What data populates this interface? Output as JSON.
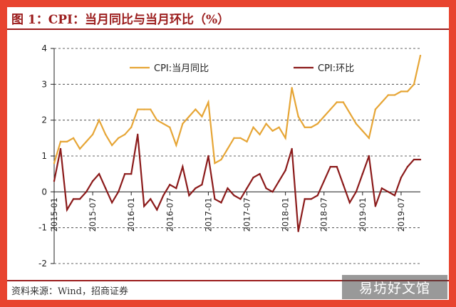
{
  "header": {
    "title": "图 1：CPI：当月同比与当月环比（%）"
  },
  "footer": {
    "source": "资料来源：Wind，招商证券"
  },
  "watermark": {
    "text": "易坊好文馆"
  },
  "chart_data": {
    "type": "line",
    "title": "CPI：当月同比与当月环比（%）",
    "xlabel": "",
    "ylabel": "",
    "ylim": [
      -2,
      4
    ],
    "yticks": [
      4,
      3,
      2,
      1,
      0,
      -1,
      -2
    ],
    "grid": "horizontal-dashed",
    "legend_position": "top",
    "x_tick_labels": [
      "2015-01",
      "2015-07",
      "2016-01",
      "2016-07",
      "2017-01",
      "2017-07",
      "2018-01",
      "2018-07",
      "2019-01",
      "2019-07"
    ],
    "x": [
      "2015-01",
      "2015-02",
      "2015-03",
      "2015-04",
      "2015-05",
      "2015-06",
      "2015-07",
      "2015-08",
      "2015-09",
      "2015-10",
      "2015-11",
      "2015-12",
      "2016-01",
      "2016-02",
      "2016-03",
      "2016-04",
      "2016-05",
      "2016-06",
      "2016-07",
      "2016-08",
      "2016-09",
      "2016-10",
      "2016-11",
      "2016-12",
      "2017-01",
      "2017-02",
      "2017-03",
      "2017-04",
      "2017-05",
      "2017-06",
      "2017-07",
      "2017-08",
      "2017-09",
      "2017-10",
      "2017-11",
      "2017-12",
      "2018-01",
      "2018-02",
      "2018-03",
      "2018-04",
      "2018-05",
      "2018-06",
      "2018-07",
      "2018-08",
      "2018-09",
      "2018-10",
      "2018-11",
      "2018-12",
      "2019-01",
      "2019-02",
      "2019-03",
      "2019-04",
      "2019-05",
      "2019-06",
      "2019-07",
      "2019-08",
      "2019-09",
      "2019-10"
    ],
    "series": [
      {
        "name": "CPI:当月同比",
        "color": "#e6a535",
        "values": [
          0.8,
          1.4,
          1.4,
          1.5,
          1.2,
          1.4,
          1.6,
          2.0,
          1.6,
          1.3,
          1.5,
          1.6,
          1.8,
          2.3,
          2.3,
          2.3,
          2.0,
          1.9,
          1.8,
          1.3,
          1.9,
          2.1,
          2.3,
          2.1,
          2.5,
          0.8,
          0.9,
          1.2,
          1.5,
          1.5,
          1.4,
          1.8,
          1.6,
          1.9,
          1.7,
          1.8,
          1.5,
          2.9,
          2.1,
          1.8,
          1.8,
          1.9,
          2.1,
          2.3,
          2.5,
          2.5,
          2.2,
          1.9,
          1.7,
          1.5,
          2.3,
          2.5,
          2.7,
          2.7,
          2.8,
          2.8,
          3.0,
          3.8
        ]
      },
      {
        "name": "CPI:环比",
        "color": "#8b1a1a",
        "values": [
          0.3,
          1.2,
          -0.5,
          -0.2,
          -0.2,
          0.0,
          0.3,
          0.5,
          0.1,
          -0.3,
          0.0,
          0.5,
          0.5,
          1.6,
          -0.4,
          -0.2,
          -0.5,
          -0.1,
          0.2,
          0.1,
          0.7,
          -0.1,
          0.1,
          0.2,
          1.0,
          -0.2,
          -0.3,
          0.1,
          -0.1,
          -0.2,
          0.1,
          0.4,
          0.5,
          0.1,
          0.0,
          0.3,
          0.6,
          1.2,
          -1.1,
          -0.2,
          -0.2,
          -0.1,
          0.3,
          0.7,
          0.7,
          0.2,
          -0.3,
          0.0,
          0.5,
          1.0,
          -0.4,
          0.1,
          0.0,
          -0.1,
          0.4,
          0.7,
          0.9,
          0.9
        ]
      }
    ]
  }
}
